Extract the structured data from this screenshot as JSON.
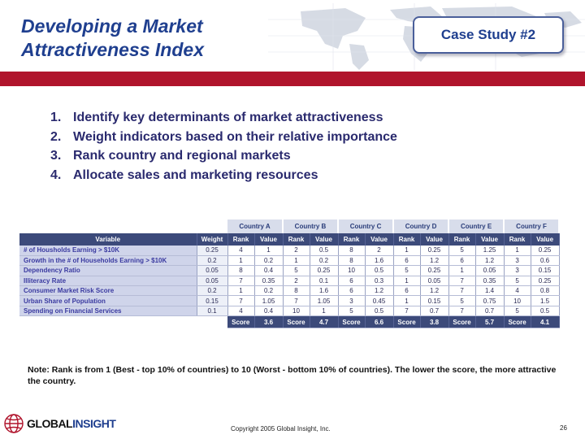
{
  "title": {
    "line1": "Developing a Market",
    "line2": "Attractiveness Index"
  },
  "case_study": "Case Study #2",
  "steps": [
    {
      "num": "1.",
      "text": "Identify key determinants of market attractiveness"
    },
    {
      "num": "2.",
      "text": "Weight indicators based on their relative importance"
    },
    {
      "num": "3.",
      "text": "Rank country and regional markets"
    },
    {
      "num": "4.",
      "text": "Allocate sales and marketing resources"
    }
  ],
  "table": {
    "countries": [
      "Country A",
      "Country B",
      "Country C",
      "Country D",
      "Country E",
      "Country F"
    ],
    "col_variable": "Variable",
    "col_weight": "Weight",
    "col_rank": "Rank",
    "col_value": "Value",
    "score_label": "Score",
    "rows": [
      {
        "variable": "# of Housholds Earning > $10K",
        "weight": "0.25",
        "cells": [
          "4",
          "1",
          "2",
          "0.5",
          "8",
          "2",
          "1",
          "0.25",
          "5",
          "1.25",
          "1",
          "0.25"
        ]
      },
      {
        "variable": "Growth in the # of Households Earning > $10K",
        "weight": "0.2",
        "cells": [
          "1",
          "0.2",
          "1",
          "0.2",
          "8",
          "1.6",
          "6",
          "1.2",
          "6",
          "1.2",
          "3",
          "0.6"
        ]
      },
      {
        "variable": "Dependency Ratio",
        "weight": "0.05",
        "cells": [
          "8",
          "0.4",
          "5",
          "0.25",
          "10",
          "0.5",
          "5",
          "0.25",
          "1",
          "0.05",
          "3",
          "0.15"
        ]
      },
      {
        "variable": "Illiteracy Rate",
        "weight": "0.05",
        "cells": [
          "7",
          "0.35",
          "2",
          "0.1",
          "6",
          "0.3",
          "1",
          "0.05",
          "7",
          "0.35",
          "5",
          "0.25"
        ]
      },
      {
        "variable": "Consumer Market Risk Score",
        "weight": "0.2",
        "cells": [
          "1",
          "0.2",
          "8",
          "1.6",
          "6",
          "1.2",
          "6",
          "1.2",
          "7",
          "1.4",
          "4",
          "0.8"
        ]
      },
      {
        "variable": "Urban Share of Population",
        "weight": "0.15",
        "cells": [
          "7",
          "1.05",
          "7",
          "1.05",
          "3",
          "0.45",
          "1",
          "0.15",
          "5",
          "0.75",
          "10",
          "1.5"
        ]
      },
      {
        "variable": "Spending on Financial Services",
        "weight": "0.1",
        "cells": [
          "4",
          "0.4",
          "10",
          "1",
          "5",
          "0.5",
          "7",
          "0.7",
          "7",
          "0.7",
          "5",
          "0.5"
        ]
      }
    ],
    "scores": [
      "3.6",
      "4.7",
      "6.6",
      "3.8",
      "5.7",
      "4.1"
    ]
  },
  "note": "Note: Rank is from 1 (Best - top 10% of countries) to 10 (Worst - bottom 10% of countries).  The lower the score, the more attractive the country.",
  "logo": {
    "part1": "GLOBAL",
    "part2": "INSIGHT"
  },
  "copyright": "Copyright 2005 Global Insight, Inc.",
  "page_number": "26",
  "colors": {
    "title": "#1f3f8f",
    "bar": "#b0142c",
    "header": "#3c4a7a",
    "variable_cell": "#cfd4ea"
  },
  "icons": {
    "map": "world-map-icon",
    "logo": "globe-logo-icon"
  }
}
